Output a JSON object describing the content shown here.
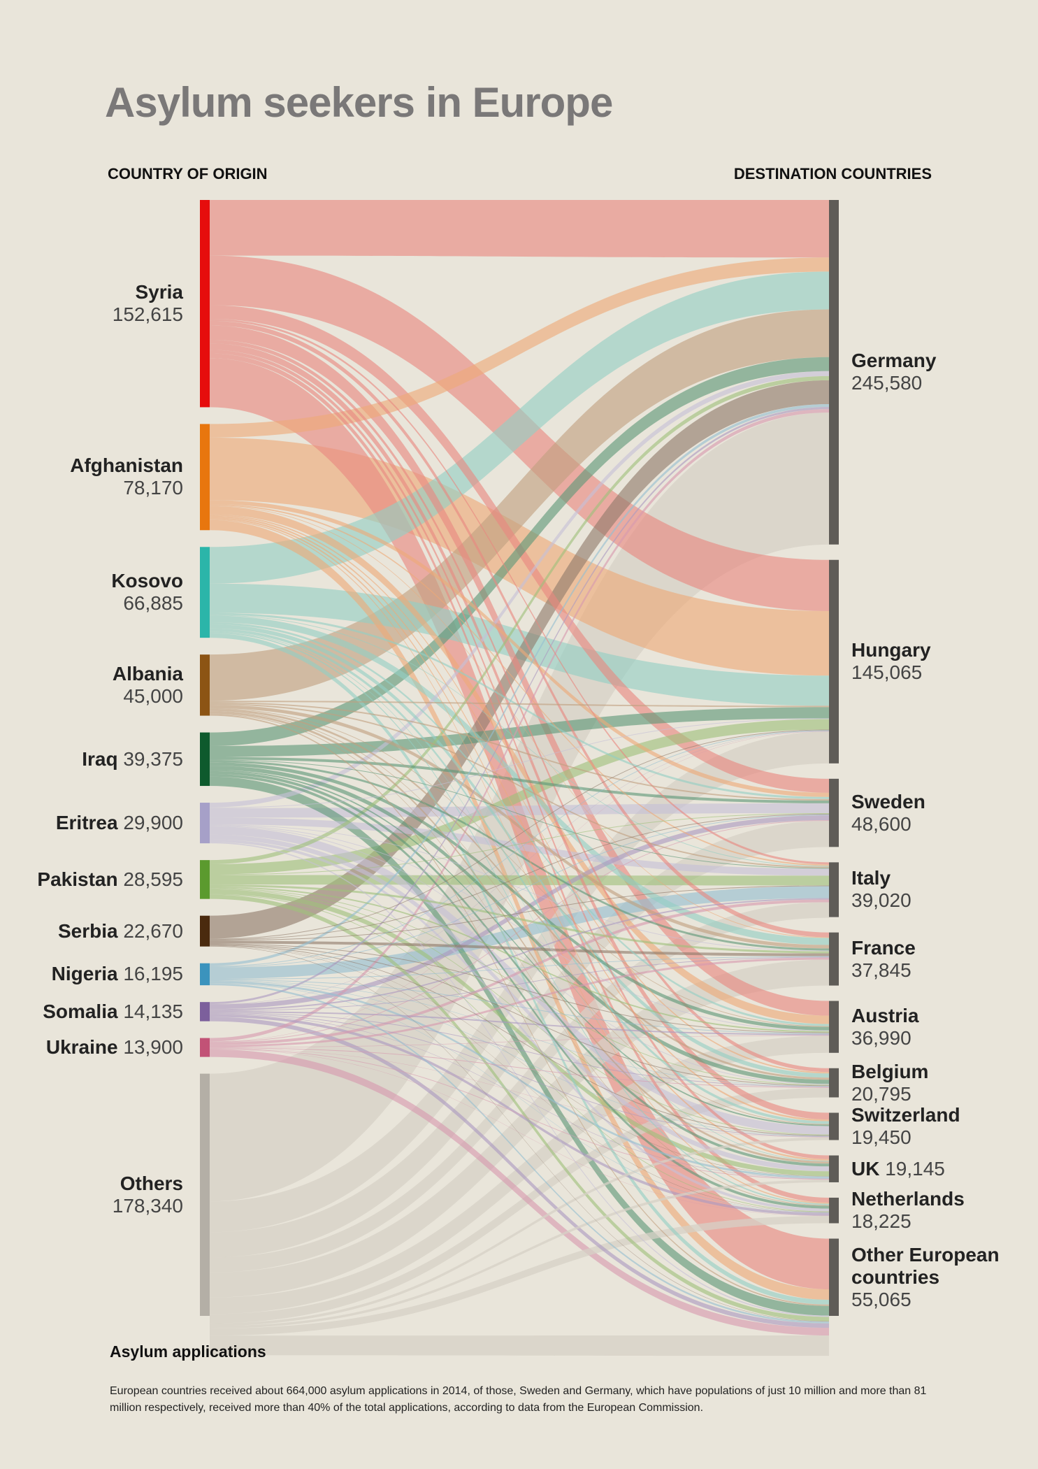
{
  "title": "Asylum seekers in Europe",
  "left_header": "COUNTRY OF ORIGIN",
  "right_header": "DESTINATION COUNTRIES",
  "footer": {
    "heading": "Asylum applications",
    "text": "European countries received about 664,000 asylum applications in 2014, of those, Sweden and Germany, which have populations of just 10 million and more than 81 million respectively, received more than 40% of the total applications, according to data from the European Commission."
  },
  "chart_data": {
    "type": "sankey",
    "title": "Asylum seekers in Europe",
    "sources": [
      {
        "name": "Syria",
        "value": 152615,
        "value_label": "152,615",
        "color": "#e60d0d",
        "flow_color": "#e8887f",
        "label_style": "stacked"
      },
      {
        "name": "Afghanistan",
        "value": 78170,
        "value_label": "78,170",
        "color": "#e8760e",
        "flow_color": "#eea977",
        "label_style": "stacked"
      },
      {
        "name": "Kosovo",
        "value": 66885,
        "value_label": "66,885",
        "color": "#2bb5a9",
        "flow_color": "#93cfc4",
        "label_style": "stacked"
      },
      {
        "name": "Albania",
        "value": 45000,
        "value_label": "45,000",
        "color": "#8c5414",
        "flow_color": "#c0a07f",
        "label_style": "stacked"
      },
      {
        "name": "Iraq",
        "value": 39375,
        "value_label": "39,375",
        "color": "#0e5a2d",
        "flow_color": "#5e9878",
        "label_style": "inline"
      },
      {
        "name": "Eritrea",
        "value": 29900,
        "value_label": "29,900",
        "color": "#a6a0c8",
        "flow_color": "#c5c0d6",
        "label_style": "inline"
      },
      {
        "name": "Pakistan",
        "value": 28595,
        "value_label": "28,595",
        "color": "#5b9a2e",
        "flow_color": "#9ec07a",
        "label_style": "inline"
      },
      {
        "name": "Serbia",
        "value": 22670,
        "value_label": "22,670",
        "color": "#4a2a0e",
        "flow_color": "#8f7b6a",
        "label_style": "inline"
      },
      {
        "name": "Nigeria",
        "value": 16195,
        "value_label": "16,195",
        "color": "#3b93bd",
        "flow_color": "#94bfd0",
        "label_style": "inline"
      },
      {
        "name": "Somalia",
        "value": 14135,
        "value_label": "14,135",
        "color": "#7c5f9c",
        "flow_color": "#ab9ac0",
        "label_style": "inline"
      },
      {
        "name": "Ukraine",
        "value": 13900,
        "value_label": "13,900",
        "color": "#c25276",
        "flow_color": "#d79aae",
        "label_style": "inline"
      },
      {
        "name": "Others",
        "value": 178340,
        "value_label": "178,340",
        "color": "#b4afa6",
        "flow_color": "#d5d0c5",
        "label_style": "stacked"
      }
    ],
    "destinations": [
      {
        "name": "Germany",
        "value": 245580,
        "value_label": "245,580",
        "label_style": "stacked"
      },
      {
        "name": "Hungary",
        "value": 145065,
        "value_label": "145,065",
        "label_style": "stacked"
      },
      {
        "name": "Sweden",
        "value": 48600,
        "value_label": "48,600",
        "label_style": "stacked"
      },
      {
        "name": "Italy",
        "value": 39020,
        "value_label": "39,020",
        "label_style": "stacked"
      },
      {
        "name": "France",
        "value": 37845,
        "value_label": "37,845",
        "label_style": "stacked"
      },
      {
        "name": "Austria",
        "value": 36990,
        "value_label": "36,990",
        "label_style": "stacked"
      },
      {
        "name": "Belgium",
        "value": 20795,
        "value_label": "20,795",
        "label_style": "stacked"
      },
      {
        "name": "Switzerland",
        "value": 19450,
        "value_label": "19,450",
        "label_style": "stacked"
      },
      {
        "name": "UK",
        "value": 19145,
        "value_label": "19,145",
        "label_style": "inline"
      },
      {
        "name": "Netherlands",
        "value": 18225,
        "value_label": "18,225",
        "label_style": "stacked"
      },
      {
        "name": "Other European countries",
        "value": 55065,
        "value_label": "55,065",
        "label_style": "three-line",
        "name_lines": [
          "Other European",
          "countries"
        ]
      }
    ],
    "node_color_destination": "#5f5c57",
    "flows": [
      {
        "from": "Syria",
        "to": "Germany",
        "value": 41000
      },
      {
        "from": "Syria",
        "to": "Hungary",
        "value": 36500
      },
      {
        "from": "Syria",
        "to": "Sweden",
        "value": 10000
      },
      {
        "from": "Syria",
        "to": "Italy",
        "value": 1500
      },
      {
        "from": "Syria",
        "to": "France",
        "value": 3400
      },
      {
        "from": "Syria",
        "to": "Austria",
        "value": 10500
      },
      {
        "from": "Syria",
        "to": "Belgium",
        "value": 2700
      },
      {
        "from": "Syria",
        "to": "Switzerland",
        "value": 4800
      },
      {
        "from": "Syria",
        "to": "UK",
        "value": 2600
      },
      {
        "from": "Syria",
        "to": "Netherlands",
        "value": 3500
      },
      {
        "from": "Syria",
        "to": "Other European countries",
        "value": 36115
      },
      {
        "from": "Afghanistan",
        "to": "Germany",
        "value": 10000
      },
      {
        "from": "Afghanistan",
        "to": "Hungary",
        "value": 46000
      },
      {
        "from": "Afghanistan",
        "to": "Sweden",
        "value": 3000
      },
      {
        "from": "Afghanistan",
        "to": "Italy",
        "value": 1000
      },
      {
        "from": "Afghanistan",
        "to": "France",
        "value": 500
      },
      {
        "from": "Afghanistan",
        "to": "Austria",
        "value": 6000
      },
      {
        "from": "Afghanistan",
        "to": "Belgium",
        "value": 1000
      },
      {
        "from": "Afghanistan",
        "to": "Switzerland",
        "value": 1200
      },
      {
        "from": "Afghanistan",
        "to": "UK",
        "value": 1200
      },
      {
        "from": "Afghanistan",
        "to": "Netherlands",
        "value": 800
      },
      {
        "from": "Afghanistan",
        "to": "Other European countries",
        "value": 7470
      },
      {
        "from": "Kosovo",
        "to": "Germany",
        "value": 27000
      },
      {
        "from": "Kosovo",
        "to": "Hungary",
        "value": 21500
      },
      {
        "from": "Kosovo",
        "to": "Sweden",
        "value": 1500
      },
      {
        "from": "Kosovo",
        "to": "Italy",
        "value": 500
      },
      {
        "from": "Kosovo",
        "to": "France",
        "value": 5000
      },
      {
        "from": "Kosovo",
        "to": "Austria",
        "value": 1500
      },
      {
        "from": "Kosovo",
        "to": "Belgium",
        "value": 3000
      },
      {
        "from": "Kosovo",
        "to": "Switzerland",
        "value": 2000
      },
      {
        "from": "Kosovo",
        "to": "UK",
        "value": 500
      },
      {
        "from": "Kosovo",
        "to": "Netherlands",
        "value": 1000
      },
      {
        "from": "Kosovo",
        "to": "Other European countries",
        "value": 3385
      },
      {
        "from": "Albania",
        "to": "Germany",
        "value": 34000
      },
      {
        "from": "Albania",
        "to": "Hungary",
        "value": 1000
      },
      {
        "from": "Albania",
        "to": "Sweden",
        "value": 1000
      },
      {
        "from": "Albania",
        "to": "Italy",
        "value": 1000
      },
      {
        "from": "Albania",
        "to": "France",
        "value": 2500
      },
      {
        "from": "Albania",
        "to": "Austria",
        "value": 500
      },
      {
        "from": "Albania",
        "to": "Belgium",
        "value": 1500
      },
      {
        "from": "Albania",
        "to": "Switzerland",
        "value": 500
      },
      {
        "from": "Albania",
        "to": "UK",
        "value": 1500
      },
      {
        "from": "Albania",
        "to": "Netherlands",
        "value": 500
      },
      {
        "from": "Albania",
        "to": "Other European countries",
        "value": 1000
      },
      {
        "from": "Iraq",
        "to": "Germany",
        "value": 10000
      },
      {
        "from": "Iraq",
        "to": "Hungary",
        "value": 8000
      },
      {
        "from": "Iraq",
        "to": "Sweden",
        "value": 2000
      },
      {
        "from": "Iraq",
        "to": "Italy",
        "value": 500
      },
      {
        "from": "Iraq",
        "to": "France",
        "value": 1500
      },
      {
        "from": "Iraq",
        "to": "Austria",
        "value": 2500
      },
      {
        "from": "Iraq",
        "to": "Belgium",
        "value": 3000
      },
      {
        "from": "Iraq",
        "to": "Switzerland",
        "value": 1000
      },
      {
        "from": "Iraq",
        "to": "UK",
        "value": 2000
      },
      {
        "from": "Iraq",
        "to": "Netherlands",
        "value": 2000
      },
      {
        "from": "Iraq",
        "to": "Other European countries",
        "value": 6875
      },
      {
        "from": "Eritrea",
        "to": "Germany",
        "value": 3500
      },
      {
        "from": "Eritrea",
        "to": "Hungary",
        "value": 500
      },
      {
        "from": "Eritrea",
        "to": "Sweden",
        "value": 7000
      },
      {
        "from": "Eritrea",
        "to": "Italy",
        "value": 5000
      },
      {
        "from": "Eritrea",
        "to": "France",
        "value": 500
      },
      {
        "from": "Eritrea",
        "to": "Austria",
        "value": 500
      },
      {
        "from": "Eritrea",
        "to": "Belgium",
        "value": 500
      },
      {
        "from": "Eritrea",
        "to": "Switzerland",
        "value": 6000
      },
      {
        "from": "Eritrea",
        "to": "UK",
        "value": 3500
      },
      {
        "from": "Eritrea",
        "to": "Netherlands",
        "value": 2000
      },
      {
        "from": "Eritrea",
        "to": "Other European countries",
        "value": 900
      },
      {
        "from": "Pakistan",
        "to": "Germany",
        "value": 3000
      },
      {
        "from": "Pakistan",
        "to": "Hungary",
        "value": 7500
      },
      {
        "from": "Pakistan",
        "to": "Sweden",
        "value": 500
      },
      {
        "from": "Pakistan",
        "to": "Italy",
        "value": 7000
      },
      {
        "from": "Pakistan",
        "to": "France",
        "value": 1500
      },
      {
        "from": "Pakistan",
        "to": "Austria",
        "value": 1000
      },
      {
        "from": "Pakistan",
        "to": "Belgium",
        "value": 500
      },
      {
        "from": "Pakistan",
        "to": "Switzerland",
        "value": 500
      },
      {
        "from": "Pakistan",
        "to": "UK",
        "value": 3500
      },
      {
        "from": "Pakistan",
        "to": "Netherlands",
        "value": 500
      },
      {
        "from": "Pakistan",
        "to": "Other European countries",
        "value": 3095
      },
      {
        "from": "Serbia",
        "to": "Germany",
        "value": 17000
      },
      {
        "from": "Serbia",
        "to": "Hungary",
        "value": 500
      },
      {
        "from": "Serbia",
        "to": "Sweden",
        "value": 500
      },
      {
        "from": "Serbia",
        "to": "Italy",
        "value": 500
      },
      {
        "from": "Serbia",
        "to": "France",
        "value": 2000
      },
      {
        "from": "Serbia",
        "to": "Austria",
        "value": 500
      },
      {
        "from": "Serbia",
        "to": "Belgium",
        "value": 500
      },
      {
        "from": "Serbia",
        "to": "Switzerland",
        "value": 500
      },
      {
        "from": "Serbia",
        "to": "UK",
        "value": 200
      },
      {
        "from": "Serbia",
        "to": "Netherlands",
        "value": 200
      },
      {
        "from": "Serbia",
        "to": "Other European countries",
        "value": 270
      },
      {
        "from": "Nigeria",
        "to": "Germany",
        "value": 2000
      },
      {
        "from": "Nigeria",
        "to": "Hungary",
        "value": 500
      },
      {
        "from": "Nigeria",
        "to": "Sweden",
        "value": 500
      },
      {
        "from": "Nigeria",
        "to": "Italy",
        "value": 8500
      },
      {
        "from": "Nigeria",
        "to": "France",
        "value": 500
      },
      {
        "from": "Nigeria",
        "to": "Austria",
        "value": 500
      },
      {
        "from": "Nigeria",
        "to": "Belgium",
        "value": 300
      },
      {
        "from": "Nigeria",
        "to": "Switzerland",
        "value": 300
      },
      {
        "from": "Nigeria",
        "to": "UK",
        "value": 1500
      },
      {
        "from": "Nigeria",
        "to": "Netherlands",
        "value": 300
      },
      {
        "from": "Nigeria",
        "to": "Other European countries",
        "value": 1295
      },
      {
        "from": "Somalia",
        "to": "Germany",
        "value": 1500
      },
      {
        "from": "Somalia",
        "to": "Hungary",
        "value": 200
      },
      {
        "from": "Somalia",
        "to": "Sweden",
        "value": 3500
      },
      {
        "from": "Somalia",
        "to": "Italy",
        "value": 1000
      },
      {
        "from": "Somalia",
        "to": "France",
        "value": 500
      },
      {
        "from": "Somalia",
        "to": "Austria",
        "value": 1000
      },
      {
        "from": "Somalia",
        "to": "Belgium",
        "value": 500
      },
      {
        "from": "Somalia",
        "to": "Switzerland",
        "value": 500
      },
      {
        "from": "Somalia",
        "to": "UK",
        "value": 300
      },
      {
        "from": "Somalia",
        "to": "Netherlands",
        "value": 2000
      },
      {
        "from": "Somalia",
        "to": "Other European countries",
        "value": 3135
      },
      {
        "from": "Ukraine",
        "to": "Germany",
        "value": 2500
      },
      {
        "from": "Ukraine",
        "to": "Hungary",
        "value": 200
      },
      {
        "from": "Ukraine",
        "to": "Sweden",
        "value": 500
      },
      {
        "from": "Ukraine",
        "to": "Italy",
        "value": 2000
      },
      {
        "from": "Ukraine",
        "to": "France",
        "value": 1500
      },
      {
        "from": "Ukraine",
        "to": "Austria",
        "value": 300
      },
      {
        "from": "Ukraine",
        "to": "Belgium",
        "value": 500
      },
      {
        "from": "Ukraine",
        "to": "Switzerland",
        "value": 200
      },
      {
        "from": "Ukraine",
        "to": "UK",
        "value": 500
      },
      {
        "from": "Ukraine",
        "to": "Netherlands",
        "value": 200
      },
      {
        "from": "Ukraine",
        "to": "Other European countries",
        "value": 5500
      },
      {
        "from": "Others",
        "to": "Germany",
        "value": 94080
      },
      {
        "from": "Others",
        "to": "Hungary",
        "value": 22665
      },
      {
        "from": "Others",
        "to": "Sweden",
        "value": 18600
      },
      {
        "from": "Others",
        "to": "Italy",
        "value": 11020
      },
      {
        "from": "Others",
        "to": "France",
        "value": 18445
      },
      {
        "from": "Others",
        "to": "Austria",
        "value": 12190
      },
      {
        "from": "Others",
        "to": "Belgium",
        "value": 6795
      },
      {
        "from": "Others",
        "to": "Switzerland",
        "value": 1950
      },
      {
        "from": "Others",
        "to": "UK",
        "value": 1845
      },
      {
        "from": "Others",
        "to": "Netherlands",
        "value": 5225
      },
      {
        "from": "Others",
        "to": "Other European countries",
        "value": 14500
      }
    ]
  }
}
